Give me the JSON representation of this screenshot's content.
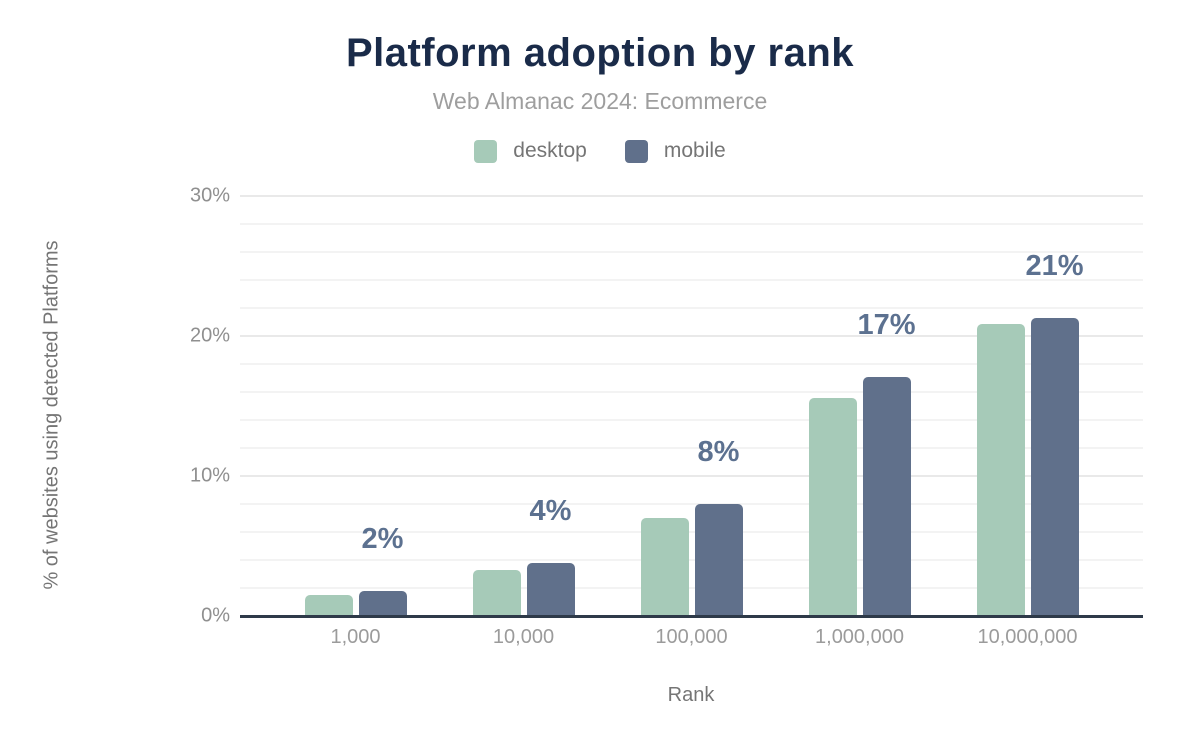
{
  "chart_data": {
    "type": "bar",
    "title": "Platform adoption by rank",
    "subtitle": "Web Almanac 2024: Ecommerce",
    "xlabel": "Rank",
    "ylabel": "% of websites using detected Platforms",
    "categories": [
      "1,000",
      "10,000",
      "100,000",
      "1,000,000",
      "10,000,000"
    ],
    "series": [
      {
        "name": "desktop",
        "color": "#a6cab8",
        "values": [
          1.4,
          3.2,
          6.9,
          15.5,
          20.8
        ]
      },
      {
        "name": "mobile",
        "color": "#60708b",
        "values": [
          1.7,
          3.7,
          7.9,
          17.0,
          21.2
        ]
      }
    ],
    "bar_labels": {
      "texts": [
        "2%",
        "4%",
        "8%",
        "17%",
        "21%"
      ],
      "color": "#5c7190",
      "anchor_series": "mobile"
    },
    "ylim": [
      0,
      30
    ],
    "yticks": [
      {
        "value": 0,
        "label": "0%"
      },
      {
        "value": 10,
        "label": "10%"
      },
      {
        "value": 20,
        "label": "20%"
      },
      {
        "value": 30,
        "label": "30%"
      }
    ],
    "grid": {
      "on": true,
      "minor_step": 2,
      "major_step": 10
    },
    "legend_position": "top",
    "colors": {
      "title": "#1a2b49",
      "subtitle": "#9e9e9e",
      "legend_text": "#757575",
      "axis_line": "#2e3a49",
      "y_tick_text": "#8f8f8f",
      "x_tick_text": "#9b9b9b",
      "axis_title_text": "#757575",
      "grid_minor": "#f3f3f3",
      "grid_major": "#e9e9e9",
      "background": "#ffffff"
    }
  }
}
